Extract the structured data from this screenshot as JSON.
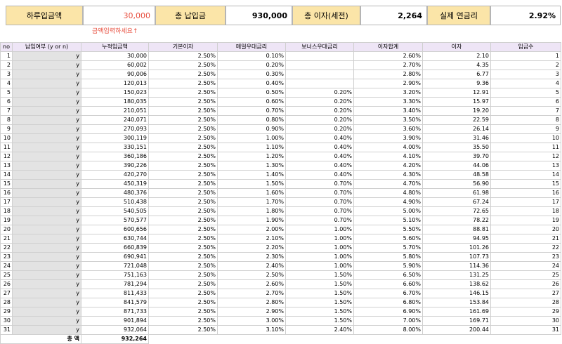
{
  "summary": {
    "daily_label": "하루입금액",
    "daily_value": "30,000",
    "deposit_label": "총 납입금",
    "deposit_value": "930,000",
    "interest_label": "총 이자(세전)",
    "interest_value": "2,264",
    "rate_label": "실제 연금리",
    "rate_value": "2.92%",
    "hint": "금액입력하세요↑"
  },
  "table": {
    "headers": [
      "no",
      "납입여부 (y or n)",
      "누적입금액",
      "기본이자",
      "매일우대금리",
      "보너스우대금리",
      "이자합계",
      "이자",
      "입금수"
    ],
    "rows": [
      [
        "1",
        "y",
        "30,000",
        "2.50%",
        "0.10%",
        "",
        "2.60%",
        "2.10",
        "1"
      ],
      [
        "2",
        "y",
        "60,002",
        "2.50%",
        "0.20%",
        "",
        "2.70%",
        "4.35",
        "2"
      ],
      [
        "3",
        "y",
        "90,006",
        "2.50%",
        "0.30%",
        "",
        "2.80%",
        "6.77",
        "3"
      ],
      [
        "4",
        "y",
        "120,013",
        "2.50%",
        "0.40%",
        "",
        "2.90%",
        "9.36",
        "4"
      ],
      [
        "5",
        "y",
        "150,023",
        "2.50%",
        "0.50%",
        "0.20%",
        "3.20%",
        "12.91",
        "5"
      ],
      [
        "6",
        "y",
        "180,035",
        "2.50%",
        "0.60%",
        "0.20%",
        "3.30%",
        "15.97",
        "6"
      ],
      [
        "7",
        "y",
        "210,051",
        "2.50%",
        "0.70%",
        "0.20%",
        "3.40%",
        "19.20",
        "7"
      ],
      [
        "8",
        "y",
        "240,071",
        "2.50%",
        "0.80%",
        "0.20%",
        "3.50%",
        "22.59",
        "8"
      ],
      [
        "9",
        "y",
        "270,093",
        "2.50%",
        "0.90%",
        "0.20%",
        "3.60%",
        "26.14",
        "9"
      ],
      [
        "10",
        "y",
        "300,119",
        "2.50%",
        "1.00%",
        "0.40%",
        "3.90%",
        "31.46",
        "10"
      ],
      [
        "11",
        "y",
        "330,151",
        "2.50%",
        "1.10%",
        "0.40%",
        "4.00%",
        "35.50",
        "11"
      ],
      [
        "12",
        "y",
        "360,186",
        "2.50%",
        "1.20%",
        "0.40%",
        "4.10%",
        "39.70",
        "12"
      ],
      [
        "13",
        "y",
        "390,226",
        "2.50%",
        "1.30%",
        "0.40%",
        "4.20%",
        "44.06",
        "13"
      ],
      [
        "14",
        "y",
        "420,270",
        "2.50%",
        "1.40%",
        "0.40%",
        "4.30%",
        "48.58",
        "14"
      ],
      [
        "15",
        "y",
        "450,319",
        "2.50%",
        "1.50%",
        "0.70%",
        "4.70%",
        "56.90",
        "15"
      ],
      [
        "16",
        "y",
        "480,376",
        "2.50%",
        "1.60%",
        "0.70%",
        "4.80%",
        "61.98",
        "16"
      ],
      [
        "17",
        "y",
        "510,438",
        "2.50%",
        "1.70%",
        "0.70%",
        "4.90%",
        "67.24",
        "17"
      ],
      [
        "18",
        "y",
        "540,505",
        "2.50%",
        "1.80%",
        "0.70%",
        "5.00%",
        "72.65",
        "18"
      ],
      [
        "19",
        "y",
        "570,577",
        "2.50%",
        "1.90%",
        "0.70%",
        "5.10%",
        "78.22",
        "19"
      ],
      [
        "20",
        "y",
        "600,656",
        "2.50%",
        "2.00%",
        "1.00%",
        "5.50%",
        "88.81",
        "20"
      ],
      [
        "21",
        "y",
        "630,744",
        "2.50%",
        "2.10%",
        "1.00%",
        "5.60%",
        "94.95",
        "21"
      ],
      [
        "22",
        "y",
        "660,839",
        "2.50%",
        "2.20%",
        "1.00%",
        "5.70%",
        "101.26",
        "22"
      ],
      [
        "23",
        "y",
        "690,941",
        "2.50%",
        "2.30%",
        "1.00%",
        "5.80%",
        "107.73",
        "23"
      ],
      [
        "24",
        "y",
        "721,048",
        "2.50%",
        "2.40%",
        "1.00%",
        "5.90%",
        "114.36",
        "24"
      ],
      [
        "25",
        "y",
        "751,163",
        "2.50%",
        "2.50%",
        "1.50%",
        "6.50%",
        "131.25",
        "25"
      ],
      [
        "26",
        "y",
        "781,294",
        "2.50%",
        "2.60%",
        "1.50%",
        "6.60%",
        "138.62",
        "26"
      ],
      [
        "27",
        "y",
        "811,433",
        "2.50%",
        "2.70%",
        "1.50%",
        "6.70%",
        "146.15",
        "27"
      ],
      [
        "28",
        "y",
        "841,579",
        "2.50%",
        "2.80%",
        "1.50%",
        "6.80%",
        "153.84",
        "28"
      ],
      [
        "29",
        "y",
        "871,733",
        "2.50%",
        "2.90%",
        "1.50%",
        "6.90%",
        "161.69",
        "29"
      ],
      [
        "30",
        "y",
        "901,894",
        "2.50%",
        "3.00%",
        "1.50%",
        "7.00%",
        "169.71",
        "30"
      ],
      [
        "31",
        "y",
        "932,064",
        "2.50%",
        "3.10%",
        "2.40%",
        "8.00%",
        "200.44",
        "31"
      ]
    ],
    "total_label": "총 액",
    "total_value": "932,264"
  }
}
